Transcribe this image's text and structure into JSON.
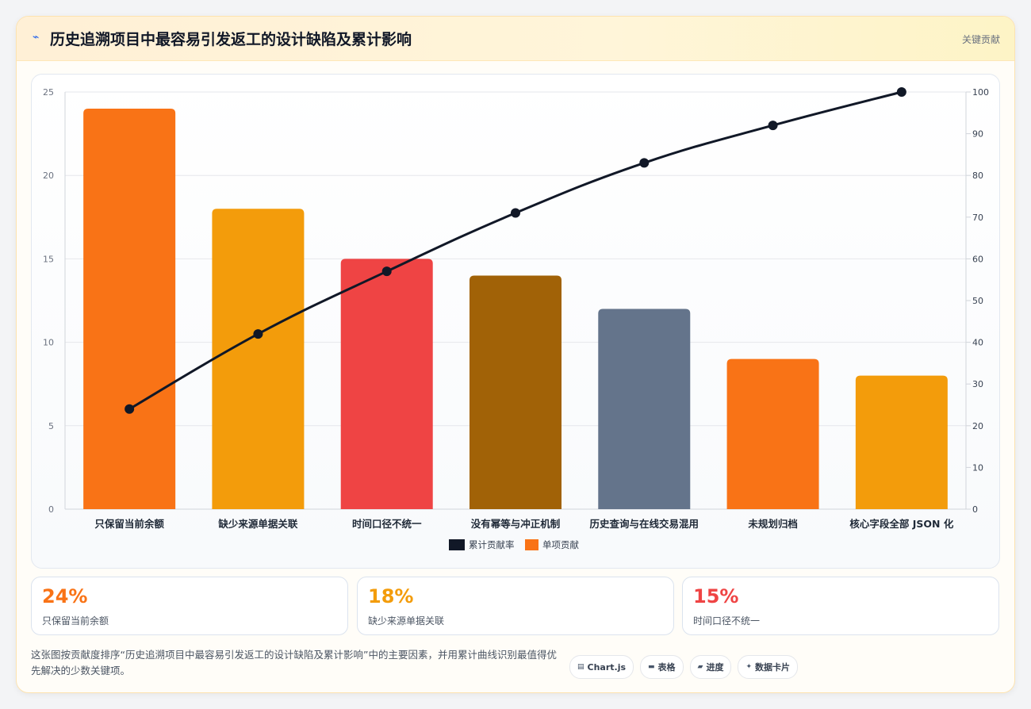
{
  "header": {
    "icon": "lightning-icon",
    "title": "历史追溯项目中最容易引发返工的设计缺陷及累计影响",
    "tag": "关键贡献"
  },
  "chart_data": {
    "type": "bar",
    "title": "历史追溯项目中最容易引发返工的设计缺陷及累计影响",
    "categories": [
      "只保留当前余额",
      "缺少来源单据关联",
      "时间口径不统一",
      "没有幂等与冲正机制",
      "历史查询与在线交易混用",
      "未规划归档",
      "核心字段全部 JSON 化"
    ],
    "series": [
      {
        "name": "单项贡献",
        "type": "bar",
        "axis": "left",
        "values": [
          24,
          18,
          15,
          14,
          12,
          9,
          8
        ]
      },
      {
        "name": "累计贡献率",
        "type": "line",
        "axis": "right",
        "values": [
          24,
          42,
          57,
          71,
          83,
          92,
          100
        ]
      }
    ],
    "bar_colors": [
      "#f97316",
      "#f39c0b",
      "#ef4444",
      "#a16207",
      "#64748b",
      "#f97316",
      "#f39c0b"
    ],
    "line_color": "#111827",
    "ylim": [
      0,
      25
    ],
    "y_ticks": [
      0,
      5,
      10,
      15,
      20,
      25
    ],
    "y2lim": [
      0,
      100
    ],
    "y2_ticks": [
      0,
      10,
      20,
      30,
      40,
      50,
      60,
      70,
      80,
      90,
      100
    ],
    "grid": true,
    "legend_position": "bottom",
    "legend": [
      {
        "label": "累计贡献率",
        "color": "#111827"
      },
      {
        "label": "单项贡献",
        "color": "#f97316"
      }
    ]
  },
  "kpis": [
    {
      "value": "24%",
      "label": "只保留当前余额",
      "color": "#f97316"
    },
    {
      "value": "18%",
      "label": "缺少来源单据关联",
      "color": "#f39c0b"
    },
    {
      "value": "15%",
      "label": "时间口径不统一",
      "color": "#ef4444"
    }
  ],
  "description": "这张图按贡献度排序“历史追溯项目中最容易引发返工的设计缺陷及累计影响”中的主要因素，并用累计曲线识别最值得优先解决的少数关键项。",
  "pills": [
    {
      "icon": "chart-icon",
      "label": "Chart.js"
    },
    {
      "icon": "table-icon",
      "label": "表格"
    },
    {
      "icon": "progress-icon",
      "label": "进度"
    },
    {
      "icon": "card-icon",
      "label": "数据卡片"
    }
  ]
}
